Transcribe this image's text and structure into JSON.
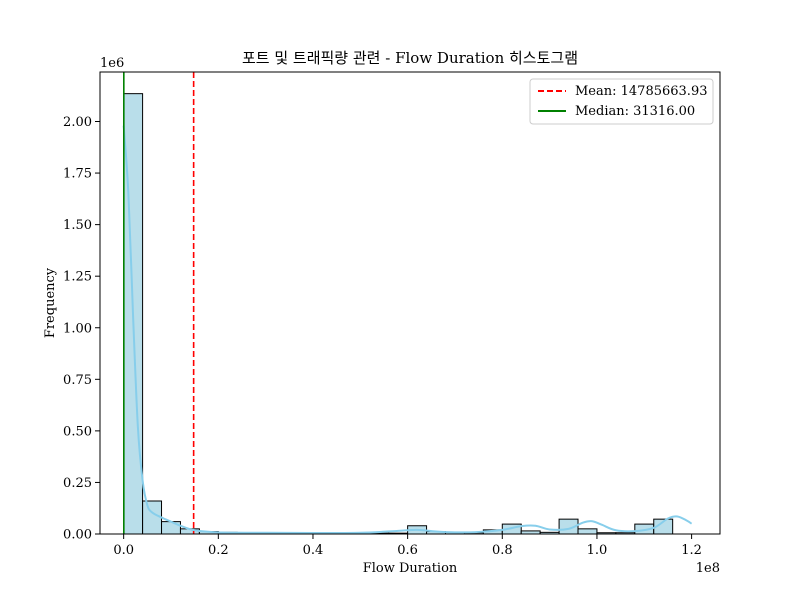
{
  "chart_data": {
    "type": "bar",
    "title": "포트 및 트래픽량 관련 - Flow Duration 히스토그램",
    "xlabel": "Flow Duration",
    "ylabel": "Frequency",
    "x_offset_label": "1e8",
    "y_offset_label": "1e6",
    "x_unit_multiplier": 100000000,
    "y_unit_multiplier": 1000000,
    "xlim": [
      -5000000,
      126000000
    ],
    "ylim": [
      0,
      2240000
    ],
    "x_ticks": [
      0,
      20000000,
      40000000,
      60000000,
      80000000,
      100000000,
      120000000
    ],
    "x_tick_labels": [
      "0.0",
      "0.2",
      "0.4",
      "0.6",
      "0.8",
      "1.0",
      "1.2"
    ],
    "y_ticks": [
      0,
      250000,
      500000,
      750000,
      1000000,
      1250000,
      1500000,
      1750000,
      2000000
    ],
    "y_tick_labels": [
      "0.00",
      "0.25",
      "0.50",
      "0.75",
      "1.00",
      "1.25",
      "1.50",
      "1.75",
      "2.00"
    ],
    "bin_edges": [
      0,
      4000000,
      8000000,
      12000000,
      16000000,
      20000000,
      24000000,
      28000000,
      32000000,
      36000000,
      40000000,
      44000000,
      48000000,
      52000000,
      56000000,
      60000000,
      64000000,
      68000000,
      72000000,
      76000000,
      80000000,
      84000000,
      88000000,
      92000000,
      96000000,
      100000000,
      104000000,
      108000000,
      112000000,
      116000000,
      120000000
    ],
    "counts": [
      2135000,
      160000,
      60000,
      25000,
      12000,
      8000,
      6000,
      5000,
      5000,
      4000,
      4000,
      4000,
      4000,
      4000,
      4000,
      40000,
      12000,
      8000,
      6000,
      20000,
      48000,
      15000,
      8000,
      72000,
      25000,
      6000,
      6000,
      48000,
      72000,
      0
    ],
    "kde": {
      "x": [
        0,
        1000000,
        2000000,
        3000000,
        4000000,
        5000000,
        6000000,
        8000000,
        10000000,
        12000000,
        15000000,
        20000000,
        30000000,
        40000000,
        50000000,
        58000000,
        62000000,
        66000000,
        70000000,
        75000000,
        80000000,
        84000000,
        87000000,
        90000000,
        94000000,
        97000000,
        99000000,
        101000000,
        104000000,
        108000000,
        112000000,
        115000000,
        117000000,
        119000000,
        120000000
      ],
      "y": [
        1980000,
        1650000,
        1050000,
        520000,
        260000,
        140000,
        105000,
        80000,
        60000,
        40000,
        18000,
        8000,
        6000,
        5000,
        6000,
        15000,
        20000,
        12000,
        8000,
        10000,
        20000,
        38000,
        40000,
        22000,
        25000,
        55000,
        62000,
        45000,
        18000,
        14000,
        30000,
        75000,
        85000,
        65000,
        50000
      ],
      "color": "#87ceeb"
    },
    "bar_fill": "#add8e6",
    "bar_edge": "#000000",
    "lines": [
      {
        "name": "Mean: 14785663.93",
        "x": 14785663.93,
        "style": "dashed",
        "color": "#ff0000"
      },
      {
        "name": "Median: 31316.00",
        "x": 31316.0,
        "style": "solid",
        "color": "#008000"
      }
    ],
    "legend_position": "top-right",
    "grid": false
  }
}
